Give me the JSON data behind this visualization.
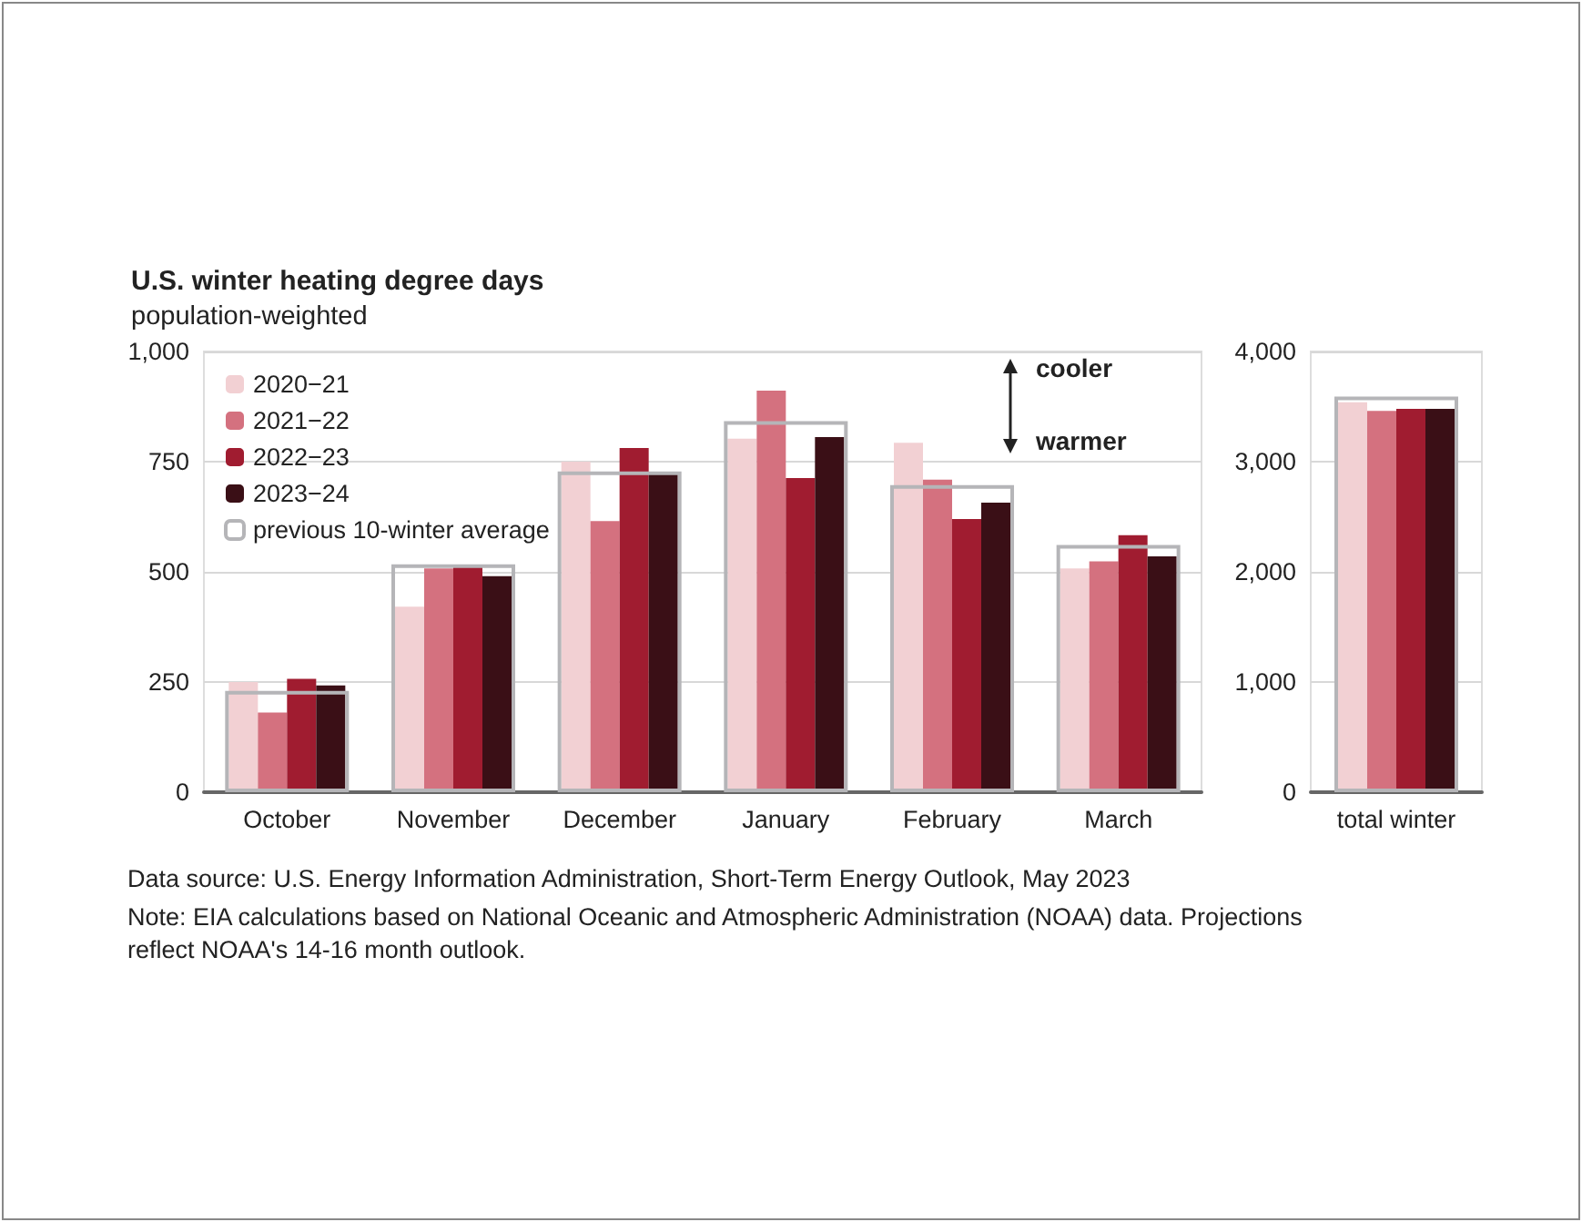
{
  "chart_data": [
    {
      "type": "bar",
      "title": "U.S. winter heating degree days",
      "subtitle": "population-weighted",
      "categories": [
        "October",
        "November",
        "December",
        "January",
        "February",
        "March"
      ],
      "series": [
        {
          "name": "2020−21",
          "color": "#f2d0d3",
          "values": [
            250,
            421,
            750,
            802,
            793,
            508
          ]
        },
        {
          "name": "2021−22",
          "color": "#d4717f",
          "values": [
            181,
            508,
            615,
            911,
            709,
            524
          ]
        },
        {
          "name": "2022−23",
          "color": "#a01c30",
          "values": [
            257,
            512,
            781,
            713,
            620,
            583
          ]
        },
        {
          "name": "2023−24",
          "color": "#3a0f16",
          "values": [
            242,
            490,
            726,
            806,
            657,
            535
          ]
        },
        {
          "name": "previous 10-winter average",
          "color": "#b5b5b8",
          "line_style": "solid",
          "values": [
            230,
            517,
            728,
            842,
            697,
            561
          ]
        }
      ],
      "ylim": [
        0,
        1000
      ],
      "yticks": [
        0,
        250,
        500,
        750,
        {
          "value": 1000,
          "label": "1,000"
        }
      ],
      "grid": "y",
      "legend": "top left",
      "annotations": [
        "cooler",
        "warmer",
        "Data source: U.S. Energy Information Administration, Short-Term Energy Outlook, May 2023",
        "Note: EIA calculations based on National Oceanic and Atmospheric Administration (NOAA) data. Projections reflect NOAA's 14-16 month outlook."
      ]
    },
    {
      "type": "bar",
      "categories": [
        "total winter"
      ],
      "series": [
        {
          "color": "#f2d0d3",
          "values": [
            3540
          ]
        },
        {
          "color": "#d4717f",
          "values": [
            3460
          ]
        },
        {
          "color": "#a01c30",
          "values": [
            3480
          ]
        },
        {
          "color": "#3a0f16",
          "values": [
            3480
          ]
        },
        {
          "color": "#b5b5b8",
          "line_style": "solid",
          "values": [
            3590
          ]
        }
      ],
      "ylim": [
        0,
        4000
      ],
      "yticks": [
        0,
        {
          "value": 1000,
          "label": "1,000"
        },
        {
          "value": 2000,
          "label": "2,000"
        },
        {
          "value": 3000,
          "label": "3,000"
        },
        {
          "value": 4000,
          "label": "4,000"
        }
      ],
      "grid": "y"
    }
  ]
}
